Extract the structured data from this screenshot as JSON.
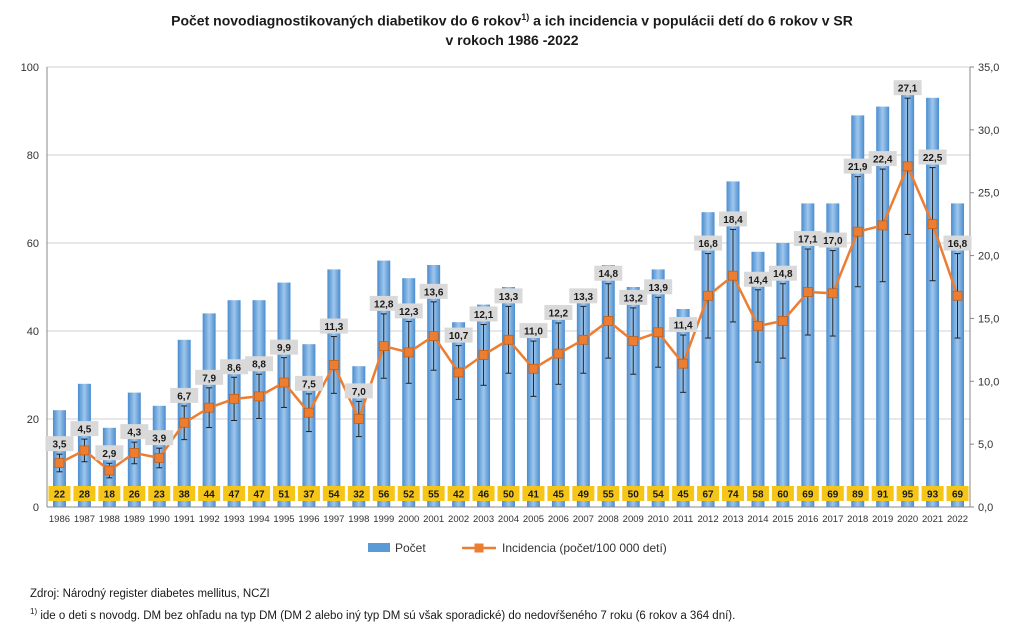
{
  "chart_data": {
    "type": "bar+line",
    "title_line1_pre": "Počet novodiagnostikovaných diabetikov do 6 rokov",
    "title_sup": "1)",
    "title_line1_post": " a ich incidencia v populácii detí do 6 rokov v SR",
    "title_line2": "v rokoch 1986 -2022",
    "categories": [
      "1986",
      "1987",
      "1988",
      "1989",
      "1990",
      "1991",
      "1992",
      "1993",
      "1994",
      "1995",
      "1996",
      "1997",
      "1998",
      "1999",
      "2000",
      "2001",
      "2002",
      "2003",
      "2004",
      "2005",
      "2006",
      "2007",
      "2008",
      "2009",
      "2010",
      "2011",
      "2012",
      "2013",
      "2014",
      "2015",
      "2016",
      "2017",
      "2018",
      "2019",
      "2020",
      "2021",
      "2022"
    ],
    "series": [
      {
        "name": "Počet",
        "type": "bar",
        "axis": "left",
        "color": "#5b9bd5",
        "values": [
          22,
          28,
          18,
          26,
          23,
          38,
          44,
          47,
          47,
          51,
          37,
          54,
          32,
          56,
          52,
          55,
          42,
          46,
          50,
          41,
          45,
          49,
          55,
          50,
          54,
          45,
          67,
          74,
          58,
          60,
          69,
          69,
          89,
          91,
          95,
          93,
          69
        ],
        "labels": [
          "22",
          "28",
          "18",
          "26",
          "23",
          "38",
          "44",
          "47",
          "47",
          "51",
          "37",
          "54",
          "32",
          "56",
          "52",
          "55",
          "42",
          "46",
          "50",
          "41",
          "45",
          "49",
          "55",
          "50",
          "54",
          "45",
          "67",
          "74",
          "58",
          "60",
          "69",
          "69",
          "89",
          "91",
          "95",
          "93",
          "69"
        ]
      },
      {
        "name": "Incidencia (počet/100 000 detí)",
        "type": "line",
        "axis": "right",
        "color": "#ed7d31",
        "values": [
          3.5,
          4.5,
          2.9,
          4.3,
          3.9,
          6.7,
          7.9,
          8.6,
          8.8,
          9.9,
          7.5,
          11.3,
          7.0,
          12.8,
          12.3,
          13.6,
          10.7,
          12.1,
          13.3,
          11.0,
          12.2,
          13.3,
          14.8,
          13.2,
          13.9,
          11.4,
          16.8,
          18.4,
          14.4,
          14.8,
          17.1,
          17.0,
          21.9,
          22.4,
          27.1,
          22.5,
          16.8
        ],
        "labels": [
          "3,5",
          "4,5",
          "2,9",
          "4,3",
          "3,9",
          "6,7",
          "7,9",
          "8,6",
          "8,8",
          "9,9",
          "7,5",
          "11,3",
          "7,0",
          "12,8",
          "12,3",
          "13,6",
          "10,7",
          "12,1",
          "13,3",
          "11,0",
          "12,2",
          "13,3",
          "14,8",
          "13,2",
          "13,9",
          "11,4",
          "16,8",
          "18,4",
          "14,4",
          "14,8",
          "17,1",
          "17,0",
          "21,9",
          "22,4",
          "27,1",
          "22,5",
          "16,8"
        ]
      }
    ],
    "y_left": {
      "min": 0,
      "max": 100,
      "ticks": [
        0,
        20,
        40,
        60,
        80,
        100
      ],
      "tick_labels": [
        "0",
        "20",
        "40",
        "60",
        "80",
        "100"
      ]
    },
    "y_right": {
      "min": 0,
      "max": 35,
      "ticks": [
        0,
        5,
        10,
        15,
        20,
        25,
        30,
        35
      ],
      "tick_labels": [
        "0,0",
        "5,0",
        "10,0",
        "15,0",
        "20,0",
        "25,0",
        "30,0",
        "35,0"
      ]
    },
    "error_bar_fraction": 0.2,
    "grid": true,
    "legend_position": "bottom",
    "label_box_colors": {
      "bar": "#f5c518",
      "line": "#d9d9d9"
    }
  },
  "footnotes": {
    "source": "Zdroj: Národný register diabetes mellitus, NCZI",
    "note_sup": "1)",
    "note_text": " ide o deti s novodg. DM bez ohľadu na typ DM  (DM 2 alebo iný typ DM sú však sporadické) do nedovŕšeného 7 roku  (6 rokov a 364 dní)."
  }
}
